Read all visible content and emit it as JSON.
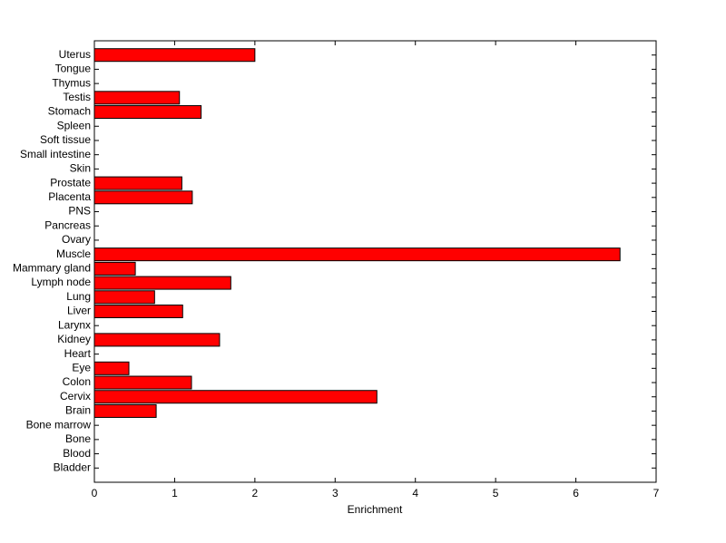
{
  "chart_data": {
    "type": "barh",
    "x_label": "Enrichment",
    "categories": [
      "Bladder",
      "Blood",
      "Bone",
      "Bone marrow",
      "Brain",
      "Cervix",
      "Colon",
      "Eye",
      "Heart",
      "Kidney",
      "Larynx",
      "Liver",
      "Lung",
      "Lymph node",
      "Mammary gland",
      "Muscle",
      "Ovary",
      "Pancreas",
      "PNS",
      "Placenta",
      "Prostate",
      "Skin",
      "Small intestine",
      "Soft tissue",
      "Spleen",
      "Stomach",
      "Testis",
      "Thymus",
      "Tongue",
      "Uterus"
    ],
    "values": [
      0,
      0,
      0,
      0,
      0.77,
      3.52,
      1.21,
      0.43,
      0,
      1.56,
      0,
      1.1,
      0.75,
      1.7,
      0.51,
      6.55,
      0,
      0,
      0,
      1.22,
      1.09,
      0,
      0,
      0,
      0,
      1.33,
      1.06,
      0,
      0,
      2.0
    ],
    "color": "#ff0000",
    "xlim": [
      0,
      7
    ],
    "xticks": [
      0,
      1,
      2,
      3,
      4,
      5,
      6,
      7
    ]
  }
}
